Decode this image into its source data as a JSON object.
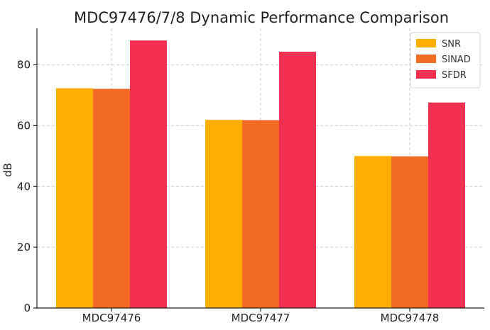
{
  "chart_data": {
    "type": "bar",
    "title": "MDC97476/7/8 Dynamic Performance Comparison",
    "xlabel": "",
    "ylabel": "dB",
    "categories": [
      "MDC97476",
      "MDC97477",
      "MDC97478"
    ],
    "series": [
      {
        "name": "SNR",
        "values": [
          72.3,
          61.9,
          50.0
        ],
        "color": "#FFAE00"
      },
      {
        "name": "SINAD",
        "values": [
          72.1,
          61.8,
          49.9
        ],
        "color": "#F26B25"
      },
      {
        "name": "SFDR",
        "values": [
          88.0,
          84.3,
          67.6
        ],
        "color": "#F23051"
      }
    ],
    "ylim": [
      0,
      92
    ],
    "yticks": [
      0,
      20,
      40,
      60,
      80
    ],
    "grid": true,
    "legend_position": "top-right"
  }
}
